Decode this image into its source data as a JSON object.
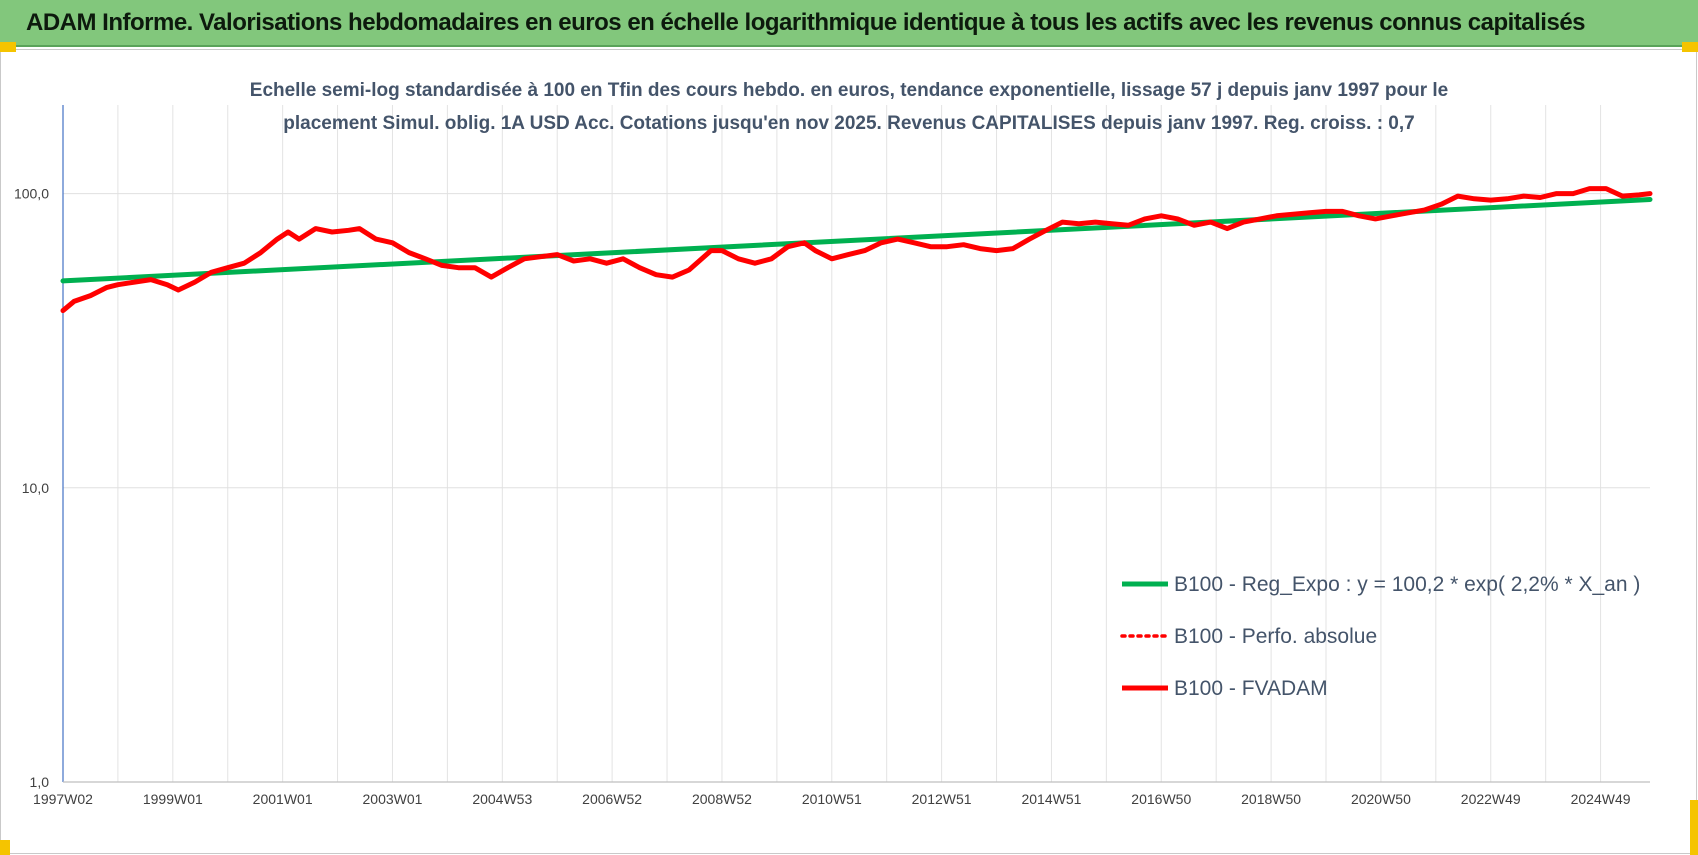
{
  "header": {
    "title": "ADAM Informe. Valorisations hebdomadaires en euros en échelle logarithmique identique à tous les actifs avec les revenus connus capitalisés"
  },
  "colors": {
    "banner": "#82c77c",
    "regression": "#00b050",
    "fvadam": "#ff0000",
    "perfo": "#ff0000",
    "subtitle": "#44546a",
    "corner_accent": "#f5c400"
  },
  "chart_data": {
    "type": "line",
    "subtitle_lines": [
      "Echelle semi-log standardisée à 100 en Tfin des cours hebdo. en euros, tendance exponentielle, lissage 57 j depuis janv 1997 pour le",
      "placement Simul. oblig. 1A USD Acc. Cotations jusqu'en nov 2025. Revenus CAPITALISES depuis janv 1997. Reg. croiss. : 0,7"
    ],
    "y_scale": "log",
    "ylim": [
      1,
      200
    ],
    "y_ticks": [
      {
        "value": 1,
        "label": "1,0"
      },
      {
        "value": 10,
        "label": "10,0"
      },
      {
        "value": 100,
        "label": "100,0"
      }
    ],
    "x_range": [
      1997.0,
      2025.9
    ],
    "x_ticks": [
      {
        "x": 1997.0,
        "label": "1997W02"
      },
      {
        "x": 1999.0,
        "label": "1999W01"
      },
      {
        "x": 2001.0,
        "label": "2001W01"
      },
      {
        "x": 2003.0,
        "label": "2003W01"
      },
      {
        "x": 2005.0,
        "label": "2004W53"
      },
      {
        "x": 2007.0,
        "label": "2006W52"
      },
      {
        "x": 2009.0,
        "label": "2008W52"
      },
      {
        "x": 2011.0,
        "label": "2010W51"
      },
      {
        "x": 2013.0,
        "label": "2012W51"
      },
      {
        "x": 2015.0,
        "label": "2014W51"
      },
      {
        "x": 2017.0,
        "label": "2016W50"
      },
      {
        "x": 2019.0,
        "label": "2018W50"
      },
      {
        "x": 2021.0,
        "label": "2020W50"
      },
      {
        "x": 2023.0,
        "label": "2022W49"
      },
      {
        "x": 2025.0,
        "label": "2024W49"
      }
    ],
    "grid_vertical": true,
    "legend_position": "right",
    "series": [
      {
        "name": "B100 - Reg_Expo : y = 100,2 * exp( 2,2% *  X_an )",
        "style": "solid-thick",
        "color": "#00b050",
        "points": [
          [
            1997.0,
            50.5
          ],
          [
            2025.9,
            95.5
          ]
        ]
      },
      {
        "name": "B100 - Perfo. absolue",
        "style": "dotted",
        "color": "#ff0000",
        "points": []
      },
      {
        "name": "B100 - FVADAM",
        "style": "solid-thick",
        "color": "#ff0000",
        "points": [
          [
            1997.0,
            40
          ],
          [
            1997.2,
            43
          ],
          [
            1997.5,
            45
          ],
          [
            1997.8,
            48
          ],
          [
            1998.0,
            49
          ],
          [
            1998.3,
            50
          ],
          [
            1998.6,
            51
          ],
          [
            1998.9,
            49
          ],
          [
            1999.1,
            47
          ],
          [
            1999.4,
            50
          ],
          [
            1999.7,
            54
          ],
          [
            2000.0,
            56
          ],
          [
            2000.3,
            58
          ],
          [
            2000.6,
            63
          ],
          [
            2000.9,
            70
          ],
          [
            2001.1,
            74
          ],
          [
            2001.3,
            70
          ],
          [
            2001.6,
            76
          ],
          [
            2001.9,
            74
          ],
          [
            2002.2,
            75
          ],
          [
            2002.4,
            76
          ],
          [
            2002.7,
            70
          ],
          [
            2003.0,
            68
          ],
          [
            2003.3,
            63
          ],
          [
            2003.6,
            60
          ],
          [
            2003.9,
            57
          ],
          [
            2004.2,
            56
          ],
          [
            2004.5,
            56
          ],
          [
            2004.8,
            52
          ],
          [
            2005.1,
            56
          ],
          [
            2005.4,
            60
          ],
          [
            2005.7,
            61
          ],
          [
            2006.0,
            62
          ],
          [
            2006.3,
            59
          ],
          [
            2006.6,
            60
          ],
          [
            2006.9,
            58
          ],
          [
            2007.2,
            60
          ],
          [
            2007.5,
            56
          ],
          [
            2007.8,
            53
          ],
          [
            2008.1,
            52
          ],
          [
            2008.4,
            55
          ],
          [
            2008.8,
            64
          ],
          [
            2009.0,
            64
          ],
          [
            2009.3,
            60
          ],
          [
            2009.6,
            58
          ],
          [
            2009.9,
            60
          ],
          [
            2010.2,
            66
          ],
          [
            2010.5,
            68
          ],
          [
            2010.7,
            64
          ],
          [
            2011.0,
            60
          ],
          [
            2011.3,
            62
          ],
          [
            2011.6,
            64
          ],
          [
            2011.9,
            68
          ],
          [
            2012.2,
            70
          ],
          [
            2012.5,
            68
          ],
          [
            2012.8,
            66
          ],
          [
            2013.1,
            66
          ],
          [
            2013.4,
            67
          ],
          [
            2013.7,
            65
          ],
          [
            2014.0,
            64
          ],
          [
            2014.3,
            65
          ],
          [
            2014.6,
            70
          ],
          [
            2014.9,
            75
          ],
          [
            2015.2,
            80
          ],
          [
            2015.5,
            79
          ],
          [
            2015.8,
            80
          ],
          [
            2016.1,
            79
          ],
          [
            2016.4,
            78
          ],
          [
            2016.7,
            82
          ],
          [
            2017.0,
            84
          ],
          [
            2017.3,
            82
          ],
          [
            2017.6,
            78
          ],
          [
            2017.9,
            80
          ],
          [
            2018.2,
            76
          ],
          [
            2018.5,
            80
          ],
          [
            2018.8,
            82
          ],
          [
            2019.1,
            84
          ],
          [
            2019.4,
            85
          ],
          [
            2019.7,
            86
          ],
          [
            2020.0,
            87
          ],
          [
            2020.3,
            87
          ],
          [
            2020.6,
            84
          ],
          [
            2020.9,
            82
          ],
          [
            2021.2,
            84
          ],
          [
            2021.5,
            86
          ],
          [
            2021.8,
            88
          ],
          [
            2022.1,
            92
          ],
          [
            2022.4,
            98
          ],
          [
            2022.7,
            96
          ],
          [
            2023.0,
            95
          ],
          [
            2023.3,
            96
          ],
          [
            2023.6,
            98
          ],
          [
            2023.9,
            97
          ],
          [
            2024.2,
            100
          ],
          [
            2024.5,
            100
          ],
          [
            2024.8,
            104
          ],
          [
            2025.1,
            104
          ],
          [
            2025.4,
            98
          ],
          [
            2025.7,
            99
          ],
          [
            2025.9,
            100
          ]
        ]
      }
    ]
  }
}
